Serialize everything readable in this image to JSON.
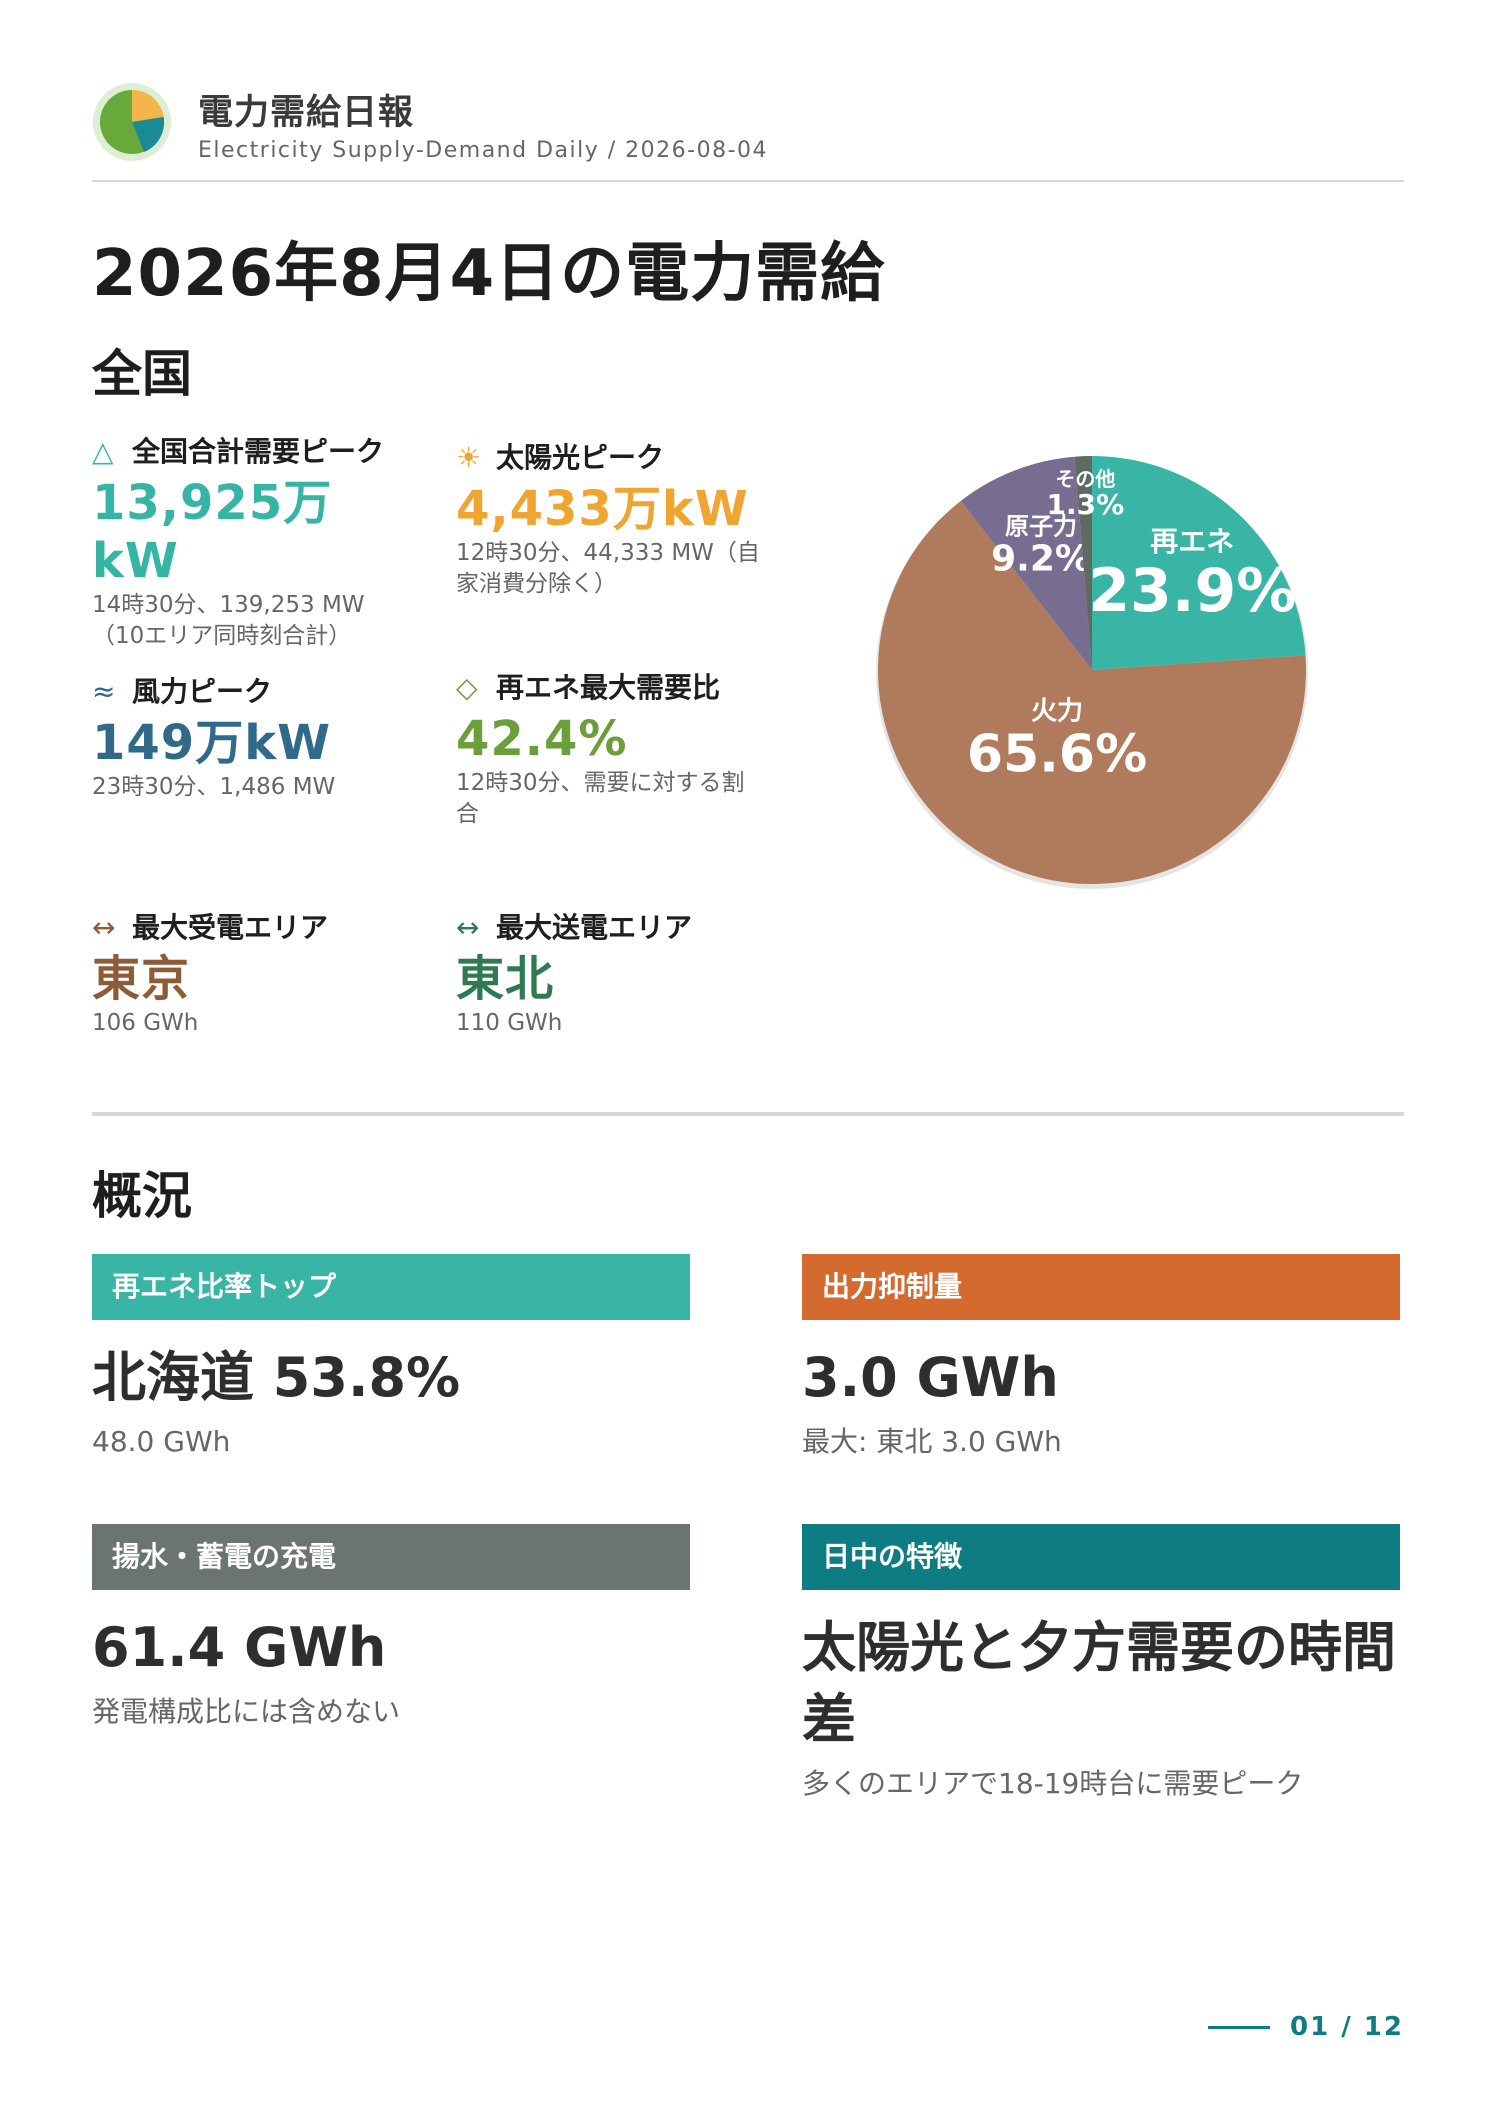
{
  "header": {
    "title": "電力需給日報",
    "subtitle": "Electricity Supply-Demand Daily / 2026-08-04"
  },
  "page_title": "2026年8月4日の電力需給",
  "national": {
    "heading": "全国",
    "kpis": [
      {
        "icon": "triangle-outline-icon",
        "icon_char": "△",
        "label": "全国合計需要ピーク",
        "value": "13,925万kW",
        "note": "14時30分、139,253 MW（10エリア同時刻合計）",
        "color": "#36b5a4"
      },
      {
        "icon": "sun-icon",
        "icon_char": "☀",
        "label": "太陽光ピーク",
        "value": "4,433万kW",
        "note": "12時30分、44,333 MW（自家消費分除く）",
        "color": "#f0a531"
      },
      {
        "icon": "wind-icon",
        "icon_char": "≈",
        "label": "風力ピーク",
        "value": "149万kW",
        "note": "23時30分、1,486 MW",
        "color": "#2f6a8b"
      },
      {
        "icon": "diamond-outline-icon",
        "icon_char": "◇",
        "label": "再エネ最大需要比",
        "value": "42.4%",
        "note": "12時30分、需要に対する割合",
        "color": "#6a9f3a"
      },
      {
        "icon": "exchange-arrows-icon",
        "icon_char": "↔",
        "label": "最大受電エリア",
        "value": "東京",
        "note": "106 GWh",
        "color": "#8d5b36"
      },
      {
        "icon": "exchange-arrows-icon",
        "icon_char": "↔",
        "label": "最大送電エリア",
        "value": "東北",
        "note": "110 GWh",
        "color": "#2f7a50"
      }
    ]
  },
  "chart_data": {
    "type": "pie",
    "slices": [
      {
        "label": "再エネ",
        "value": 23.9,
        "display": "23.9%",
        "color": "#39b5a5"
      },
      {
        "label": "火力",
        "value": 65.6,
        "display": "65.6%",
        "color": "#b07b5c"
      },
      {
        "label": "原子力",
        "value": 9.2,
        "display": "9.2%",
        "color": "#766d91"
      },
      {
        "label": "その他",
        "value": 1.3,
        "display": "1.3%",
        "color": "#5f6a62"
      }
    ]
  },
  "overview": {
    "heading": "概況",
    "cards": [
      {
        "title": "再エネ比率トップ",
        "value": "北海道 53.8%",
        "note": "48.0 GWh",
        "color": "#39b5a5"
      },
      {
        "title": "出力抑制量",
        "value": "3.0 GWh",
        "note": "最大: 東北 3.0 GWh",
        "color": "#d46a2e"
      },
      {
        "title": "揚水・蓄電の充電",
        "value": "61.4 GWh",
        "note": "発電構成比には含めない",
        "color": "#6b746f"
      },
      {
        "title": "日中の特徴",
        "value": "太陽光と夕方需要の時間差",
        "note": "多くのエリアで18-19時台に需要ピーク",
        "color": "#0e7d83"
      }
    ]
  },
  "footer": {
    "page": "01 / 12"
  }
}
